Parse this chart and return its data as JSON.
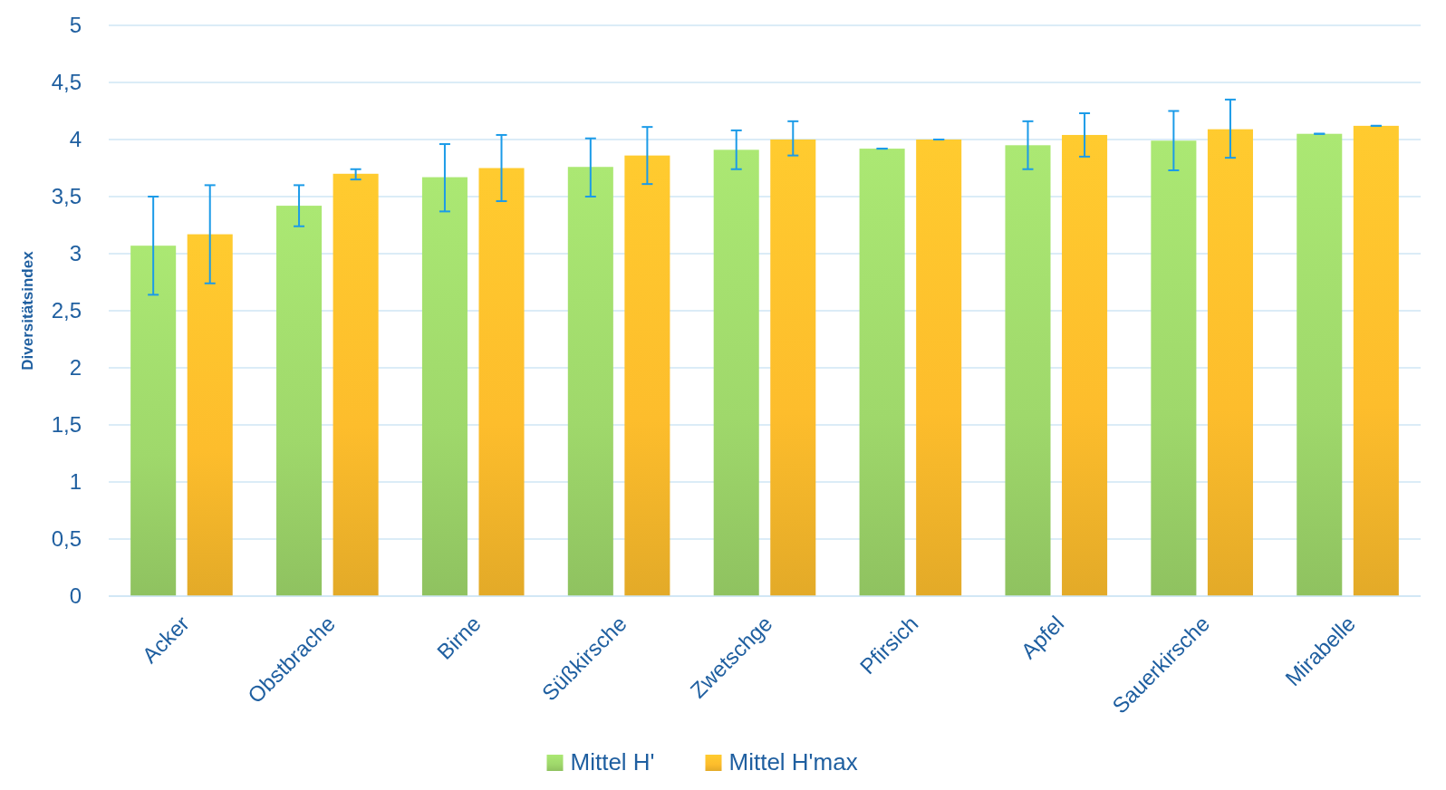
{
  "chart_data": {
    "type": "bar",
    "ylabel": "Diversitätsindex",
    "categories": [
      "Acker",
      "Obstbrache",
      "Birne",
      "Süßkirsche",
      "Zwetschge",
      "Pfirsich",
      "Apfel",
      "Sauerkirsche",
      "Mirabelle"
    ],
    "series": [
      {
        "name": "Mittel H'",
        "color": "#9fd86b",
        "values": [
          3.07,
          3.42,
          3.67,
          3.76,
          3.91,
          3.92,
          3.95,
          3.99,
          4.05
        ],
        "errors": [
          [
            2.64,
            3.5
          ],
          [
            3.24,
            3.6
          ],
          [
            3.37,
            3.96
          ],
          [
            3.5,
            4.01
          ],
          [
            3.74,
            4.08
          ],
          [
            3.92,
            3.92
          ],
          [
            3.74,
            4.16
          ],
          [
            3.73,
            4.25
          ],
          [
            4.05,
            4.05
          ]
        ]
      },
      {
        "name": "Mittel H'max",
        "color": "#fdbd2c",
        "values": [
          3.17,
          3.7,
          3.75,
          3.86,
          4.0,
          4.0,
          4.04,
          4.09,
          4.12
        ],
        "errors": [
          [
            2.74,
            3.6
          ],
          [
            3.65,
            3.74
          ],
          [
            3.46,
            4.04
          ],
          [
            3.61,
            4.11
          ],
          [
            3.86,
            4.16
          ],
          [
            4.0,
            4.0
          ],
          [
            3.85,
            4.23
          ],
          [
            3.84,
            4.35
          ],
          [
            4.12,
            4.12
          ]
        ]
      }
    ],
    "ylim": [
      0,
      5
    ],
    "yticks": [
      {
        "value": 0,
        "label": "0"
      },
      {
        "value": 0.5,
        "label": "0,5"
      },
      {
        "value": 1,
        "label": "1"
      },
      {
        "value": 1.5,
        "label": "1,5"
      },
      {
        "value": 2,
        "label": "2"
      },
      {
        "value": 2.5,
        "label": "2,5"
      },
      {
        "value": 3,
        "label": "3"
      },
      {
        "value": 3.5,
        "label": "3,5"
      },
      {
        "value": 4,
        "label": "4"
      },
      {
        "value": 4.5,
        "label": "4,5"
      },
      {
        "value": 5,
        "label": "5"
      }
    ],
    "grid": "y",
    "legend": "bottom"
  }
}
